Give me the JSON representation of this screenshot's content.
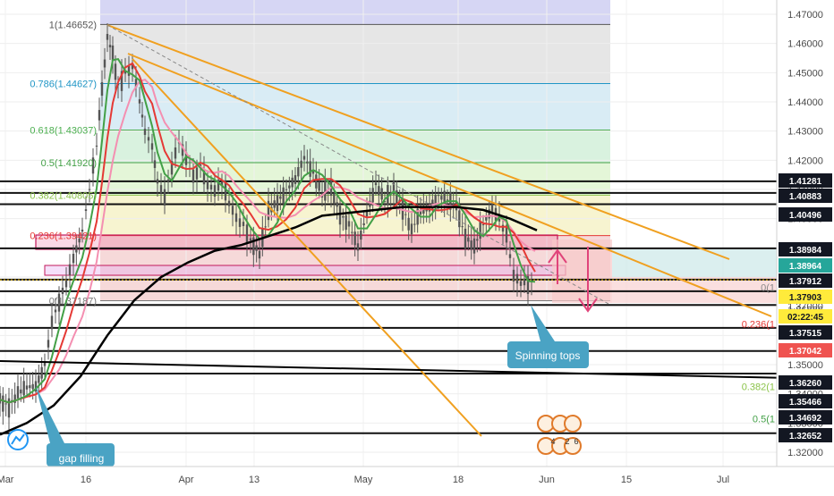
{
  "chart_data": {
    "type": "line",
    "instrument_note": "",
    "x_ticks": [
      "Mar",
      "16",
      "Apr",
      "13",
      "May",
      "18",
      "Jun",
      "15",
      "Jul"
    ],
    "y_ticks": [
      "1.47000",
      "1.46000",
      "1.45000",
      "1.44000",
      "1.43000",
      "1.42000",
      "1.41000",
      "1.40000",
      "1.39000",
      "1.38000",
      "1.37000",
      "1.36000",
      "1.35000",
      "1.34000",
      "1.33000",
      "1.32000"
    ],
    "ylim": [
      1.318,
      1.4725
    ],
    "fib_levels": [
      {
        "label": "1(1.46652)",
        "value": 1.46652,
        "color": "#555555",
        "fill": "#d6d6f4"
      },
      {
        "label": "0.786(1.44627)",
        "value": 1.44627,
        "color": "#2196c6",
        "fill": "#e6e6e6"
      },
      {
        "label": "0.618(1.43037)",
        "value": 1.43037,
        "color": "#4caf50",
        "fill": "#d9ecf5"
      },
      {
        "label": "0.5(1.41920)",
        "value": 1.4192,
        "color": "#43a047",
        "fill": "#d9f2df"
      },
      {
        "label": "0.382(1.40805)",
        "value": 1.40805,
        "color": "#8bc34a",
        "fill": "#e4f6d8"
      },
      {
        "label": "0.236(1.39421)",
        "value": 1.39421,
        "color": "#e53935",
        "fill": "#f7f4d0"
      },
      {
        "label": "0(1.37187)",
        "value": 1.37187,
        "color": "#777777",
        "fill": "#f6d9d9"
      }
    ],
    "right_fib_labels": [
      {
        "label": "0(1",
        "value": 1.3765,
        "color": "#888888"
      },
      {
        "label": "0.236(1",
        "value": 1.3639,
        "color": "#e53935"
      },
      {
        "label": "0.382(1",
        "value": 1.3425,
        "color": "#8bc34a"
      },
      {
        "label": "0.5(1",
        "value": 1.3315,
        "color": "#43a047"
      }
    ],
    "price_tags": [
      {
        "label": "1.41281",
        "value": 1.41281,
        "bg": "#131722",
        "fg": "#ffffff"
      },
      {
        "label": "1.40883",
        "value": 1.40883,
        "bg": "#131722",
        "fg": "#ffffff"
      },
      {
        "label": "1.40496",
        "value": 1.40496,
        "bg": "#131722",
        "fg": "#ffffff"
      },
      {
        "label": "1.38984",
        "value": 1.38984,
        "bg": "#131722",
        "fg": "#ffffff"
      },
      {
        "label": "1.38964",
        "value": 1.38964,
        "bg": "#26a69a",
        "fg": "#ffffff"
      },
      {
        "label": "1.37912",
        "value": 1.37912,
        "bg": "#131722",
        "fg": "#ffffff"
      },
      {
        "label": "1.37903",
        "value": 1.37903,
        "bg": "#ffeb3b",
        "fg": "#131722"
      },
      {
        "label": "02:22:45",
        "value": 1.37545,
        "bg": "#ffeb3b",
        "fg": "#131722"
      },
      {
        "label": "1.37515",
        "value": 1.37515,
        "bg": "#131722",
        "fg": "#ffffff"
      },
      {
        "label": "1.37042",
        "value": 1.37042,
        "bg": "#ef5350",
        "fg": "#ffffff"
      },
      {
        "label": "1.36260",
        "value": 1.3626,
        "bg": "#131722",
        "fg": "#ffffff"
      },
      {
        "label": "1.35466",
        "value": 1.35466,
        "bg": "#131722",
        "fg": "#ffffff"
      },
      {
        "label": "1.34692",
        "value": 1.34692,
        "bg": "#131722",
        "fg": "#ffffff"
      },
      {
        "label": "1.32652",
        "value": 1.32652,
        "bg": "#131722",
        "fg": "#ffffff"
      }
    ],
    "plain_axis_labels": [
      {
        "label": "1.36886",
        "value": 1.36886
      }
    ],
    "horizontal_lines": [
      1.41281,
      1.40883,
      1.40496,
      1.38984,
      1.37912,
      1.37515,
      1.37042,
      1.3626,
      1.35466,
      1.34692,
      1.32652
    ],
    "annotations": [
      {
        "text": "Spinning tops",
        "color": "#4aa3c4"
      },
      {
        "text": "gap filling",
        "color": "#4aa3c4"
      }
    ],
    "event_markers": [
      "4",
      "2",
      "6"
    ],
    "colors": {
      "ma_green": "#43a047",
      "ma_red": "#e53935",
      "ma_pink": "#f48fb1",
      "ma_black": "#000000",
      "trendline": "#f0a020",
      "candles": "#555555",
      "arrow": "#e0437a"
    }
  }
}
